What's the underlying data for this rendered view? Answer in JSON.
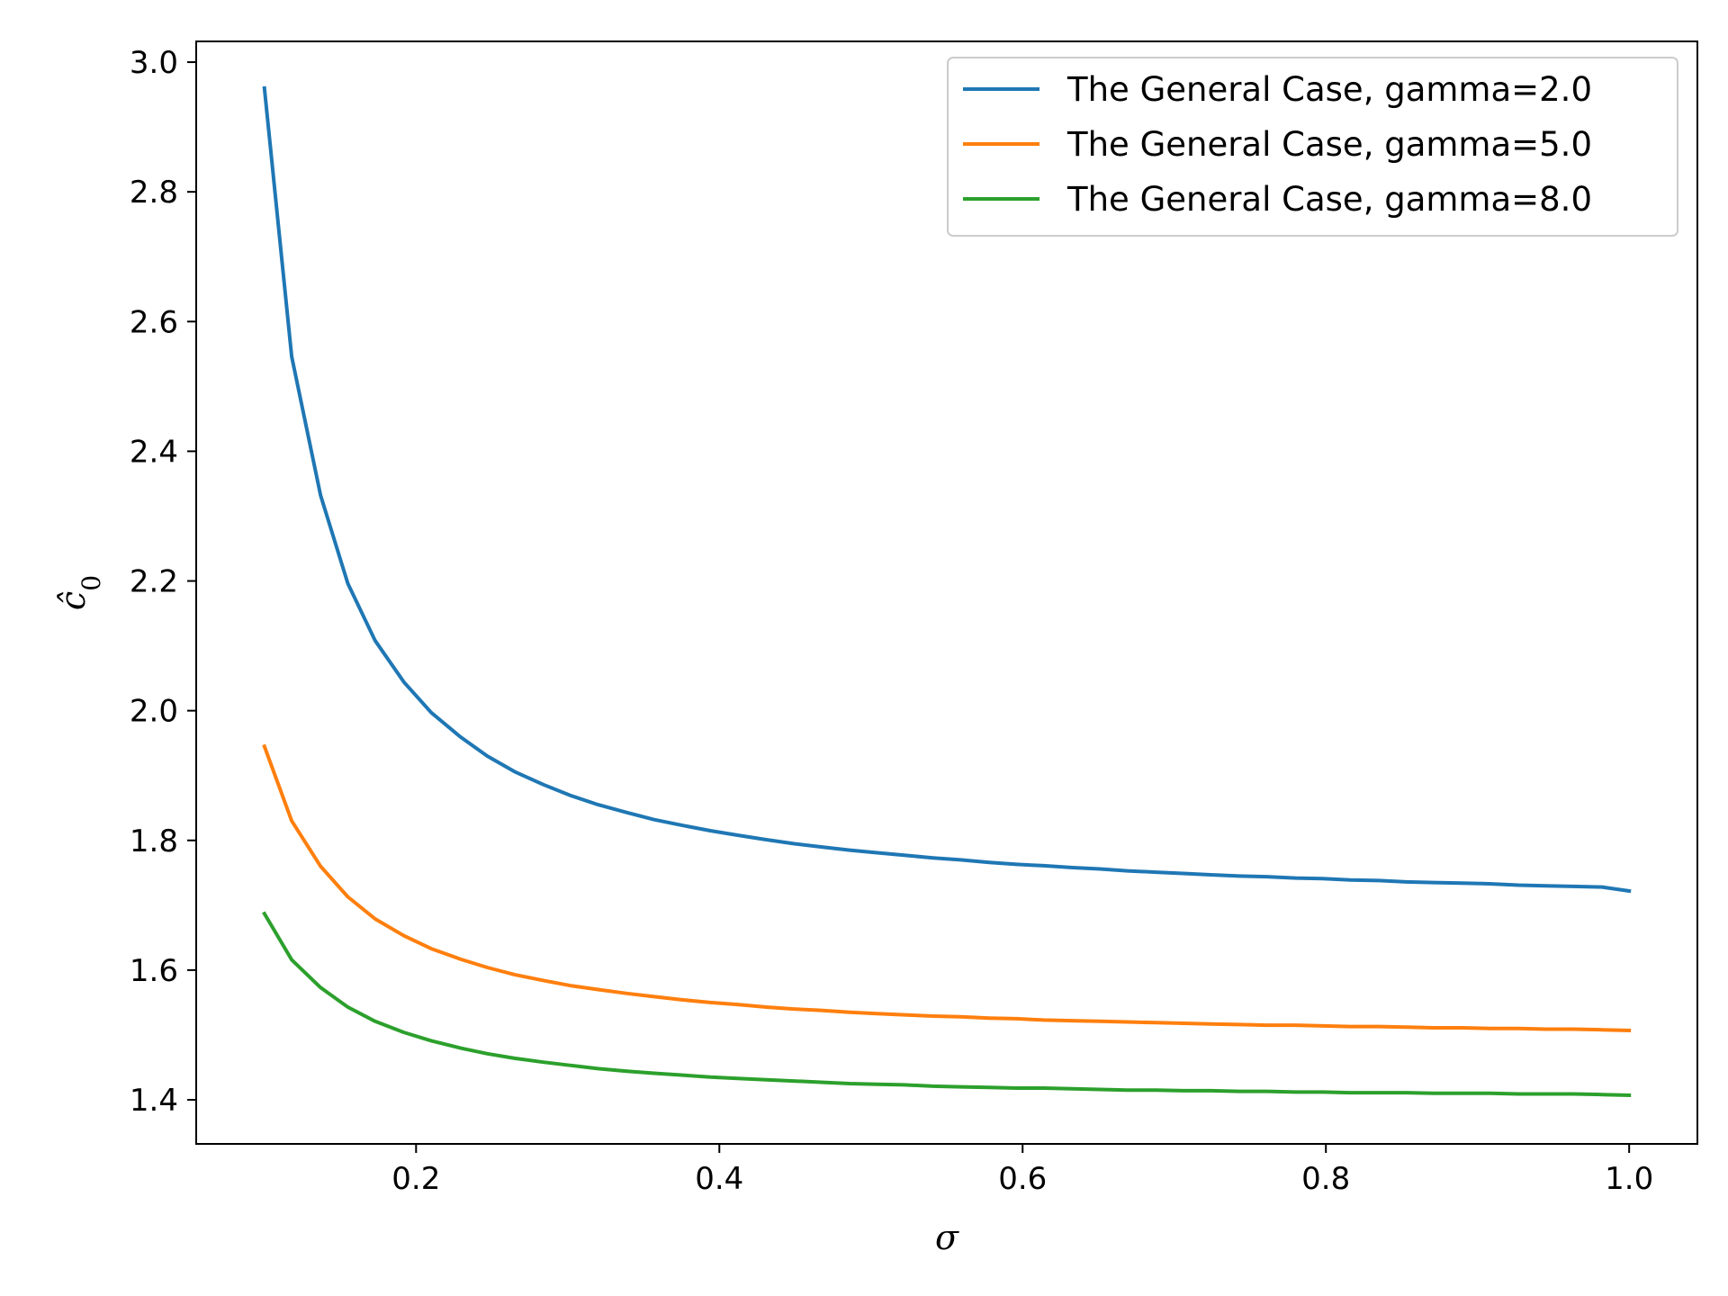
{
  "chart_data": {
    "type": "line",
    "title": "",
    "xlabel": "σ",
    "ylabel": "ĉ",
    "ylabel_subscript": "0",
    "xlim": [
      0.055,
      1.045
    ],
    "ylim": [
      1.332,
      3.032
    ],
    "x_ticks": [
      0.2,
      0.4,
      0.6,
      0.8,
      1.0
    ],
    "x_tick_labels": [
      "0.2",
      "0.4",
      "0.6",
      "0.8",
      "1.0"
    ],
    "y_ticks": [
      1.4,
      1.6,
      1.8,
      2.0,
      2.2,
      2.4,
      2.6,
      2.8,
      3.0
    ],
    "y_tick_labels": [
      "1.4",
      "1.6",
      "1.8",
      "2.0",
      "2.2",
      "2.4",
      "2.6",
      "2.8",
      "3.0"
    ],
    "grid": false,
    "legend_position": "top-right",
    "x": [
      0.1,
      0.118,
      0.137,
      0.155,
      0.173,
      0.192,
      0.21,
      0.229,
      0.247,
      0.265,
      0.284,
      0.302,
      0.32,
      0.339,
      0.357,
      0.376,
      0.394,
      0.412,
      0.431,
      0.449,
      0.467,
      0.486,
      0.504,
      0.522,
      0.541,
      0.559,
      0.578,
      0.596,
      0.614,
      0.633,
      0.651,
      0.669,
      0.688,
      0.706,
      0.724,
      0.743,
      0.761,
      0.78,
      0.798,
      0.816,
      0.835,
      0.853,
      0.871,
      0.89,
      0.908,
      0.927,
      0.945,
      0.963,
      0.982,
      1.0
    ],
    "series": [
      {
        "name": "The General Case, gamma=2.0",
        "color": "#1f77b4",
        "values": [
          2.96,
          2.546,
          2.332,
          2.196,
          2.108,
          2.044,
          1.997,
          1.96,
          1.93,
          1.906,
          1.886,
          1.869,
          1.855,
          1.843,
          1.832,
          1.823,
          1.815,
          1.808,
          1.801,
          1.795,
          1.79,
          1.785,
          1.781,
          1.777,
          1.773,
          1.77,
          1.766,
          1.763,
          1.761,
          1.758,
          1.756,
          1.753,
          1.751,
          1.749,
          1.747,
          1.745,
          1.744,
          1.742,
          1.741,
          1.739,
          1.738,
          1.736,
          1.735,
          1.734,
          1.733,
          1.731,
          1.73,
          1.729,
          1.728,
          1.722
        ]
      },
      {
        "name": "The General Case, gamma=5.0",
        "color": "#ff7f0e",
        "values": [
          1.945,
          1.83,
          1.76,
          1.713,
          1.679,
          1.653,
          1.633,
          1.617,
          1.604,
          1.593,
          1.584,
          1.576,
          1.57,
          1.564,
          1.559,
          1.554,
          1.55,
          1.547,
          1.543,
          1.54,
          1.538,
          1.535,
          1.533,
          1.531,
          1.529,
          1.528,
          1.526,
          1.525,
          1.523,
          1.522,
          1.521,
          1.52,
          1.519,
          1.518,
          1.517,
          1.516,
          1.515,
          1.515,
          1.514,
          1.513,
          1.513,
          1.512,
          1.511,
          1.511,
          1.51,
          1.51,
          1.509,
          1.509,
          1.508,
          1.507
        ]
      },
      {
        "name": "The General Case, gamma=8.0",
        "color": "#2ca02c",
        "values": [
          1.687,
          1.616,
          1.573,
          1.543,
          1.521,
          1.504,
          1.491,
          1.48,
          1.471,
          1.464,
          1.458,
          1.453,
          1.448,
          1.444,
          1.441,
          1.438,
          1.435,
          1.433,
          1.431,
          1.429,
          1.427,
          1.425,
          1.424,
          1.423,
          1.421,
          1.42,
          1.419,
          1.418,
          1.418,
          1.417,
          1.416,
          1.415,
          1.415,
          1.414,
          1.414,
          1.413,
          1.413,
          1.412,
          1.412,
          1.411,
          1.411,
          1.411,
          1.41,
          1.41,
          1.41,
          1.409,
          1.409,
          1.409,
          1.408,
          1.407
        ]
      }
    ]
  }
}
